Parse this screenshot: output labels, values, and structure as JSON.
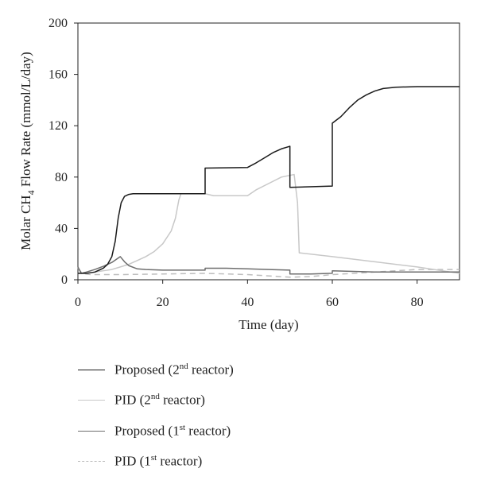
{
  "chart_data": {
    "type": "line",
    "xlabel": "Time (day)",
    "ylabel_main": "Molar CH",
    "ylabel_sub": "4",
    "ylabel_rest": " Flow Rate (mmol/L/day)",
    "xlim": [
      0,
      90
    ],
    "ylim": [
      0,
      200
    ],
    "xticks": [
      0,
      20,
      40,
      60,
      80
    ],
    "yticks": [
      0,
      40,
      80,
      120,
      160,
      200
    ],
    "grid": false,
    "legend_placement": "below",
    "series": [
      {
        "label_main": "Proposed (2",
        "label_sup": "nd",
        "label_rest": " reactor)",
        "color": "#1a1a1a",
        "dash": "solid",
        "points": [
          [
            0,
            5
          ],
          [
            2,
            5
          ],
          [
            4,
            6
          ],
          [
            6,
            9
          ],
          [
            7,
            12
          ],
          [
            8,
            18
          ],
          [
            8.8,
            30
          ],
          [
            9.5,
            48
          ],
          [
            10.2,
            60
          ],
          [
            11,
            65
          ],
          [
            12,
            66.5
          ],
          [
            13,
            67
          ],
          [
            30,
            67
          ],
          [
            30,
            87
          ],
          [
            40,
            87.5
          ],
          [
            42,
            91
          ],
          [
            44,
            95
          ],
          [
            46,
            99
          ],
          [
            48,
            102
          ],
          [
            50,
            104
          ],
          [
            50,
            72
          ],
          [
            60,
            73
          ],
          [
            60,
            122
          ],
          [
            62,
            127
          ],
          [
            64,
            134
          ],
          [
            66,
            140
          ],
          [
            68,
            144
          ],
          [
            70,
            147
          ],
          [
            72,
            149
          ],
          [
            75,
            150
          ],
          [
            80,
            150.5
          ],
          [
            90,
            150.5
          ]
        ]
      },
      {
        "label_main": "PID (2",
        "label_sup": "nd",
        "label_rest": " reactor)",
        "color": "#c8c8c8",
        "dash": "solid",
        "points": [
          [
            0,
            5
          ],
          [
            2,
            5
          ],
          [
            4,
            6
          ],
          [
            6,
            7
          ],
          [
            8,
            8
          ],
          [
            10,
            10
          ],
          [
            12,
            12
          ],
          [
            14,
            15
          ],
          [
            16,
            18
          ],
          [
            18,
            22
          ],
          [
            20,
            28
          ],
          [
            22,
            38
          ],
          [
            23,
            48
          ],
          [
            23.8,
            62
          ],
          [
            24.3,
            67
          ],
          [
            30,
            67
          ],
          [
            32,
            65.5
          ],
          [
            40,
            65.5
          ],
          [
            42,
            70
          ],
          [
            45,
            75
          ],
          [
            48,
            80
          ],
          [
            51,
            82
          ],
          [
            51.8,
            60
          ],
          [
            52.2,
            21
          ],
          [
            60,
            18
          ],
          [
            70,
            14
          ],
          [
            80,
            10
          ],
          [
            90,
            5
          ]
        ]
      },
      {
        "label_main": "Proposed (1",
        "label_sup": "st",
        "label_rest": " reactor)",
        "color": "#6e6e6e",
        "dash": "solid",
        "points": [
          [
            0,
            10
          ],
          [
            0.8,
            5
          ],
          [
            2,
            6
          ],
          [
            4,
            8
          ],
          [
            6,
            10.5
          ],
          [
            8,
            13.5
          ],
          [
            10,
            18
          ],
          [
            11,
            14
          ],
          [
            12,
            11
          ],
          [
            14,
            8.5
          ],
          [
            16,
            8
          ],
          [
            20,
            7.5
          ],
          [
            25,
            7.5
          ],
          [
            30,
            7.5
          ],
          [
            30,
            9
          ],
          [
            35,
            9
          ],
          [
            40,
            8.5
          ],
          [
            45,
            8
          ],
          [
            50,
            7.5
          ],
          [
            50,
            4.5
          ],
          [
            55,
            4.5
          ],
          [
            60,
            5
          ],
          [
            60,
            7
          ],
          [
            70,
            6
          ],
          [
            80,
            6
          ],
          [
            90,
            6
          ]
        ]
      },
      {
        "label_main": "PID (1",
        "label_sup": "st",
        "label_rest": " reactor)",
        "color": "#bdbdbd",
        "dash": "dashed",
        "points": [
          [
            0,
            9
          ],
          [
            1,
            5
          ],
          [
            3,
            4
          ],
          [
            5,
            4
          ],
          [
            10,
            4
          ],
          [
            20,
            4.5
          ],
          [
            30,
            5
          ],
          [
            40,
            4
          ],
          [
            50,
            2
          ],
          [
            55,
            2.5
          ],
          [
            60,
            4
          ],
          [
            70,
            6
          ],
          [
            80,
            8
          ],
          [
            90,
            8
          ]
        ]
      }
    ]
  }
}
